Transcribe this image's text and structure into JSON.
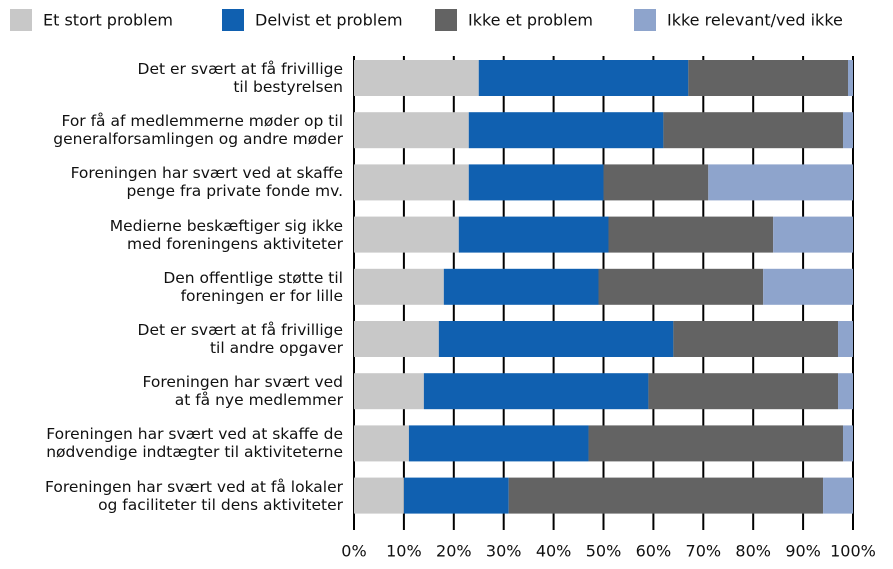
{
  "chart_data": {
    "type": "stacked-barh",
    "categories": [
      "Det er svært at få frivillige\ntil bestyrelsen",
      "For få af medlemmerne møder op til\ngeneralforsamlingen og andre møder",
      "Foreningen har svært ved at skaffe\npenge fra private fonde mv.",
      "Medierne beskæftiger sig ikke\nmed foreningens aktiviteter",
      "Den offentlige støtte til\nforeningen er for lille",
      "Det er svært at få frivillige\ntil andre opgaver",
      "Foreningen har svært ved\nat få nye medlemmer",
      "Foreningen har svært ved at skaffe de\nnødvendige indtægter til aktiviteterne",
      "Foreningen har svært ved at få lokaler\nog faciliteter til dens aktiviteter"
    ],
    "series": [
      {
        "name": "Et stort problem",
        "color": "#c8c8c8",
        "values": [
          25,
          23,
          23,
          21,
          18,
          17,
          14,
          11,
          10
        ]
      },
      {
        "name": "Delvist et problem",
        "color": "#1060b0",
        "values": [
          42,
          39,
          27,
          30,
          31,
          47,
          45,
          36,
          21
        ]
      },
      {
        "name": "Ikke et problem",
        "color": "#636363",
        "values": [
          32,
          36,
          21,
          33,
          33,
          33,
          38,
          51,
          63
        ]
      },
      {
        "name": "Ikke relevant/ved ikke",
        "color": "#8ea4cc",
        "values": [
          1,
          2,
          29,
          16,
          18,
          3,
          3,
          2,
          6
        ]
      }
    ],
    "xlim": [
      0,
      100
    ],
    "xticks": [
      {
        "value": 0,
        "label": "0%"
      },
      {
        "value": 10,
        "label": "10%"
      },
      {
        "value": 20,
        "label": "20%"
      },
      {
        "value": 30,
        "label": "30%"
      },
      {
        "value": 40,
        "label": "40%"
      },
      {
        "value": 50,
        "label": "50%"
      },
      {
        "value": 60,
        "label": "60%"
      },
      {
        "value": 70,
        "label": "70%"
      },
      {
        "value": 80,
        "label": "80%"
      },
      {
        "value": 90,
        "label": "90%"
      },
      {
        "value": 100,
        "label": "100%"
      }
    ]
  }
}
